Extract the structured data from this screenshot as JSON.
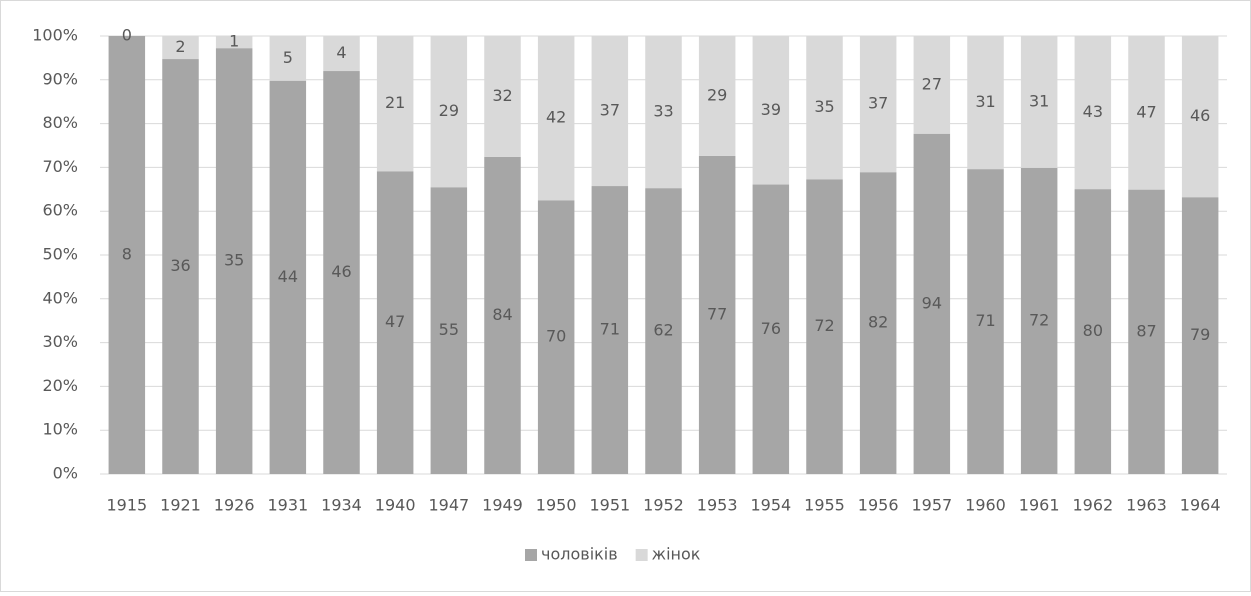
{
  "chart_data": {
    "type": "bar",
    "stacking": "percent",
    "categories": [
      "1915",
      "1921",
      "1926",
      "1931",
      "1934",
      "1940",
      "1947",
      "1949",
      "1950",
      "1951",
      "1952",
      "1953",
      "1954",
      "1955",
      "1956",
      "1957",
      "1960",
      "1961",
      "1962",
      "1963",
      "1964"
    ],
    "series": [
      {
        "name": "чоловіків",
        "color": "#a6a6a6",
        "values": [
          8,
          36,
          35,
          44,
          46,
          47,
          55,
          84,
          70,
          71,
          62,
          77,
          76,
          72,
          82,
          94,
          71,
          72,
          80,
          87,
          79
        ]
      },
      {
        "name": "жінок",
        "color": "#d9d9d9",
        "values": [
          0,
          2,
          1,
          5,
          4,
          21,
          29,
          32,
          42,
          37,
          33,
          29,
          39,
          35,
          37,
          27,
          31,
          31,
          43,
          47,
          46
        ]
      }
    ],
    "ylim": [
      0,
      100
    ],
    "yticks": [
      {
        "value": 0,
        "label": "0%"
      },
      {
        "value": 10,
        "label": "10%"
      },
      {
        "value": 20,
        "label": "20%"
      },
      {
        "value": 30,
        "label": "30%"
      },
      {
        "value": 40,
        "label": "40%"
      },
      {
        "value": 50,
        "label": "50%"
      },
      {
        "value": 60,
        "label": "60%"
      },
      {
        "value": 70,
        "label": "70%"
      },
      {
        "value": 80,
        "label": "80%"
      },
      {
        "value": 90,
        "label": "90%"
      },
      {
        "value": 100,
        "label": "100%"
      }
    ],
    "grid": true,
    "legend": "bottom"
  }
}
